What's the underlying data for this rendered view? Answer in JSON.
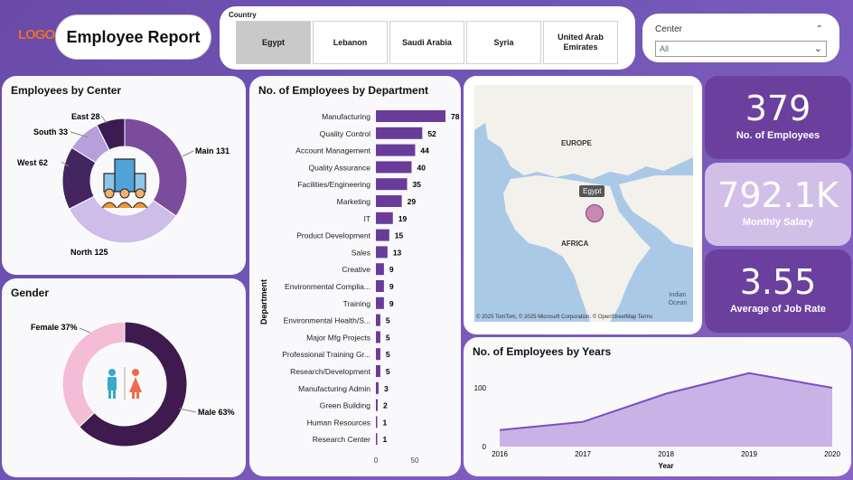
{
  "header": {
    "logo_text": "LOGO",
    "title": "Employee Report"
  },
  "country_slicer": {
    "label": "Country",
    "options": [
      "Egypt",
      "Lebanon",
      "Saudi Arabia",
      "Syria",
      "United Arab Emirates"
    ],
    "selected": "Egypt"
  },
  "center_slicer": {
    "label": "Center",
    "value": "All"
  },
  "kpis": [
    {
      "value": "379",
      "label": "No. of Employees"
    },
    {
      "value": "792.1K",
      "label": "Monthly Salary"
    },
    {
      "value": "3.55",
      "label": "Average of Job Rate"
    }
  ],
  "map": {
    "labels": {
      "europe": "EUROPE",
      "africa": "AFRICA",
      "ocean": "Indian Ocean",
      "egypt": "Egypt"
    },
    "attribution": "© 2025 TomTom, © 2025 Microsoft Corporation, © OpenStreetMap  Terms"
  },
  "colors": {
    "main": "#7b4b9c",
    "north": "#cdbde8",
    "west": "#432660",
    "south": "#b79fdc",
    "east": "#3a1c52",
    "bar": "#6a3c9a",
    "male": "#3e1a4e",
    "female": "#f4bdd6",
    "kpi1": "#6b3f9e",
    "kpi2": "#d2bfe8",
    "kpi3": "#6b3f9e",
    "area": "#c9b3e6",
    "area_line": "#7a4ec2"
  },
  "chart_data": [
    {
      "type": "pie",
      "title": "Employees by Center",
      "slices": [
        {
          "label": "Main",
          "value": 131
        },
        {
          "label": "North",
          "value": 125
        },
        {
          "label": "West",
          "value": 62
        },
        {
          "label": "South",
          "value": 33
        },
        {
          "label": "East",
          "value": 28
        }
      ]
    },
    {
      "type": "pie",
      "title": "Gender",
      "slices": [
        {
          "label": "Male",
          "value": 63,
          "display": "Male 63%"
        },
        {
          "label": "Female",
          "value": 37,
          "display": "Female 37%"
        }
      ]
    },
    {
      "type": "bar",
      "title": "No. of Employees by Department",
      "ylabel": "Department",
      "xticks": [
        "0",
        "50"
      ],
      "xlim": [
        0,
        90
      ],
      "categories": [
        "Manufacturing",
        "Quality Control",
        "Account Management",
        "Quality Assurance",
        "Facilities/Engineering",
        "Marketing",
        "IT",
        "Product Development",
        "Sales",
        "Creative",
        "Environmental Complia...",
        "Training",
        "Environmental Health/S...",
        "Major Mfg Projects",
        "Professional Training Gr...",
        "Research/Development",
        "Manufacturing Admin",
        "Green Building",
        "Human Resources",
        "Research Center"
      ],
      "values": [
        78,
        52,
        44,
        40,
        35,
        29,
        19,
        15,
        13,
        9,
        9,
        9,
        5,
        5,
        5,
        5,
        3,
        2,
        1,
        1
      ]
    },
    {
      "type": "area",
      "title": "No. of Employees by Years",
      "xlabel": "Year",
      "x": [
        "2016",
        "2017",
        "2018",
        "2019",
        "2020"
      ],
      "values": [
        28,
        42,
        90,
        125,
        100
      ],
      "ylim": [
        0,
        140
      ],
      "yticks": [
        0,
        100
      ]
    }
  ]
}
